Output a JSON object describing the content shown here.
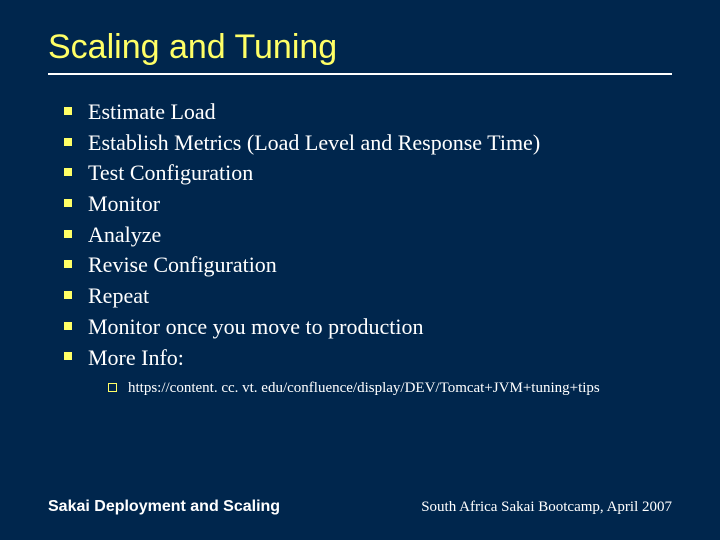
{
  "title": "Scaling and Tuning",
  "bullets": [
    "Estimate Load",
    "Establish Metrics (Load Level and Response Time)",
    "Test Configuration",
    "Monitor",
    "Analyze",
    "Revise Configuration",
    "Repeat",
    "Monitor once you move to production",
    "More Info:"
  ],
  "sub_bullets": [
    "https://content. cc. vt. edu/confluence/display/DEV/Tomcat+JVM+tuning+tips"
  ],
  "footer": {
    "left": "Sakai Deployment and Scaling",
    "right": "South Africa Sakai Bootcamp, April 2007"
  },
  "colors": {
    "background": "#00264d",
    "title": "#ffff66",
    "bullet_marker": "#ffff66",
    "text": "#ffffff",
    "rule": "#ffffff"
  }
}
